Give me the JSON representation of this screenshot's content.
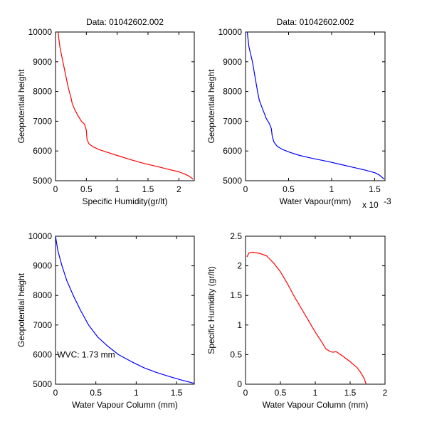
{
  "colors": {
    "background": "#ffffff",
    "axes": "#000000",
    "red": "#ff0000",
    "blue": "#0000ff"
  },
  "chart_data": [
    {
      "type": "line",
      "title": "Data: 01042602.002",
      "xlabel": "Specific Humidity(gr/lt)",
      "ylabel": "Geopotential height",
      "xlim": [
        0,
        2.25
      ],
      "ylim": [
        5000,
        10000
      ],
      "xticks": [
        0,
        0.5,
        1,
        1.5,
        2
      ],
      "xtick_labels": [
        "0",
        "0.5",
        "1",
        "1.5",
        "2"
      ],
      "yticks": [
        5000,
        6000,
        7000,
        8000,
        9000,
        10000
      ],
      "ytick_labels": [
        "5000",
        "6000",
        "7000",
        "8000",
        "9000",
        "10000"
      ],
      "grid": false,
      "series": [
        {
          "color": "#ff0000",
          "x": [
            0.04,
            0.07,
            0.12,
            0.17,
            0.21,
            0.25,
            0.27,
            0.31,
            0.36,
            0.42,
            0.47,
            0.5,
            0.51,
            0.54,
            0.6,
            0.7,
            0.85,
            1.0,
            1.2,
            1.4,
            1.6,
            1.8,
            2.0,
            2.1,
            2.15,
            2.2,
            2.23
          ],
          "y": [
            10000,
            9500,
            9000,
            8500,
            8100,
            7800,
            7600,
            7400,
            7200,
            7000,
            6900,
            6700,
            6400,
            6250,
            6150,
            6050,
            5950,
            5850,
            5720,
            5600,
            5500,
            5400,
            5300,
            5220,
            5170,
            5100,
            5050
          ]
        }
      ]
    },
    {
      "type": "line",
      "title": "Data: 01042602.002",
      "xlabel": "Water Vapour(mm)",
      "ylabel": "Geopotential height",
      "xlim": [
        0,
        0.00162
      ],
      "ylim": [
        5000,
        10000
      ],
      "xticks": [
        0,
        0.0005,
        0.001,
        0.0015
      ],
      "xtick_labels": [
        "0",
        "0.5",
        "1",
        "1.5"
      ],
      "x_multiplier_label": "x 10",
      "x_multiplier_exponent": "-3",
      "yticks": [
        5000,
        6000,
        7000,
        8000,
        9000,
        10000
      ],
      "ytick_labels": [
        "5000",
        "6000",
        "7000",
        "8000",
        "9000",
        "10000"
      ],
      "grid": false,
      "series": [
        {
          "color": "#0000ff",
          "x": [
            2e-05,
            4e-05,
            8e-05,
            0.00011,
            0.00014,
            0.00016,
            0.0002,
            0.00024,
            0.00028,
            0.0003,
            0.00031,
            0.00033,
            0.00037,
            0.00043,
            0.00052,
            0.00063,
            0.00078,
            0.00095,
            0.0011,
            0.00125,
            0.0014,
            0.0015,
            0.00155,
            0.00158,
            0.00161
          ],
          "y": [
            10000,
            9500,
            9000,
            8500,
            8000,
            7700,
            7400,
            7100,
            6900,
            6750,
            6500,
            6300,
            6150,
            6050,
            5950,
            5850,
            5750,
            5650,
            5550,
            5450,
            5350,
            5270,
            5200,
            5130,
            5050
          ]
        }
      ]
    },
    {
      "type": "line",
      "title": "",
      "xlabel": "Water Vapour Column (mm)",
      "ylabel": "Geopotential height",
      "xlim": [
        0,
        1.72
      ],
      "ylim": [
        5000,
        10000
      ],
      "xticks": [
        0,
        0.5,
        1,
        1.5
      ],
      "xtick_labels": [
        "0",
        "0.5",
        "1",
        "1.5"
      ],
      "yticks": [
        5000,
        6000,
        7000,
        8000,
        9000,
        10000
      ],
      "ytick_labels": [
        "5000",
        "6000",
        "7000",
        "8000",
        "9000",
        "10000"
      ],
      "grid": false,
      "annotation": {
        "text": "WVC: 1.73 mm",
        "color": "#ff0000",
        "x": 0.02,
        "y": 6000
      },
      "series": [
        {
          "color": "#0000ff",
          "x": [
            0.0,
            0.03,
            0.08,
            0.14,
            0.22,
            0.31,
            0.41,
            0.52,
            0.64,
            0.78,
            0.95,
            1.1,
            1.25,
            1.4,
            1.55,
            1.72
          ],
          "y": [
            10000,
            9500,
            9000,
            8500,
            8000,
            7500,
            7000,
            6600,
            6300,
            6000,
            5750,
            5550,
            5400,
            5270,
            5150,
            5030
          ]
        }
      ]
    },
    {
      "type": "line",
      "title": "",
      "xlabel": "Water Vapour Column (mm)",
      "ylabel": "Specific Humidity (gr/lt)",
      "xlim": [
        0,
        2
      ],
      "ylim": [
        0,
        2.5
      ],
      "xticks": [
        0,
        0.5,
        1,
        1.5,
        2
      ],
      "xtick_labels": [
        "0",
        "0.5",
        "1",
        "1.5",
        "2"
      ],
      "yticks": [
        0,
        0.5,
        1,
        1.5,
        2,
        2.5
      ],
      "ytick_labels": [
        "0",
        "0.5",
        "1",
        "1.5",
        "2",
        "2.5"
      ],
      "grid": false,
      "series": [
        {
          "color": "#ff0000",
          "x": [
            0.02,
            0.05,
            0.1,
            0.2,
            0.3,
            0.4,
            0.5,
            0.6,
            0.7,
            0.8,
            0.9,
            1.0,
            1.1,
            1.15,
            1.2,
            1.25,
            1.3,
            1.4,
            1.5,
            1.6,
            1.65,
            1.7,
            1.73
          ],
          "y": [
            2.15,
            2.22,
            2.23,
            2.21,
            2.17,
            2.05,
            1.9,
            1.7,
            1.48,
            1.28,
            1.08,
            0.88,
            0.7,
            0.6,
            0.56,
            0.54,
            0.55,
            0.47,
            0.38,
            0.28,
            0.2,
            0.1,
            0.0
          ]
        }
      ]
    }
  ]
}
